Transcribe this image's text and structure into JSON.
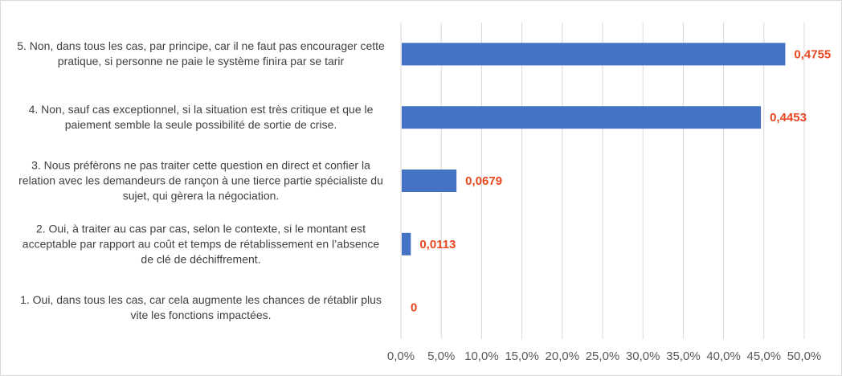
{
  "chart_data": {
    "type": "bar",
    "orientation": "horizontal",
    "categories": [
      "5. Non, dans tous les cas, par principe, car il ne faut pas encourager cette pratique, si personne ne paie le système finira par se tarir",
      "4. Non, sauf cas exceptionnel, si la situation est très critique et que le paiement semble la seule possibilité de sortie de crise.",
      "3. Nous préfèrons ne pas traiter cette question en direct et confier la relation avec les demandeurs de rançon à une tierce partie spécialiste du sujet, qui gèrera la négociation.",
      "2. Oui, à traiter au cas par cas, selon le contexte, si le montant est acceptable par rapport au coût et temps de rétablissement en l’absence de clé de déchiffrement.",
      "1. Oui, dans tous les cas, car cela augmente les chances de rétablir plus vite les fonctions impactées."
    ],
    "label_lines": [
      [
        "5. Non, dans tous les cas, par principe, car il ne faut pas encourager cette",
        "pratique, si personne ne paie le système finira par se tarir"
      ],
      [
        "4. Non, sauf cas exceptionnel, si la situation est très critique et que le",
        "paiement semble la seule possibilité de sortie de crise."
      ],
      [
        "3. Nous préfèrons ne pas traiter cette question en direct et confier la",
        "relation avec les demandeurs de rançon à une tierce partie spécialiste du",
        "sujet, qui gèrera la négociation."
      ],
      [
        "2. Oui, à traiter au cas par cas, selon le contexte, si le montant est",
        "acceptable par rapport au coût et temps de rétablissement en l’absence",
        "de clé de déchiffrement."
      ],
      [
        "1. Oui, dans tous les cas, car cela augmente les chances de rétablir plus",
        "vite les fonctions impactées."
      ]
    ],
    "values": [
      0.4755,
      0.4453,
      0.0679,
      0.0113,
      0
    ],
    "data_labels": [
      "0,4755",
      "0,4453",
      "0,0679",
      "0,0113",
      "0"
    ],
    "xlim": [
      0,
      0.5
    ],
    "x_ticks": [
      0,
      0.05,
      0.1,
      0.15,
      0.2,
      0.25,
      0.3,
      0.35,
      0.4,
      0.45,
      0.5
    ],
    "x_tick_labels": [
      "0,0%",
      "5,0%",
      "10,0%",
      "15,0%",
      "20,0%",
      "25,0%",
      "30,0%",
      "35,0%",
      "40,0%",
      "45,0%",
      "50,0%"
    ],
    "grid": true,
    "bar_color": "#4472c4",
    "label_color": "#e8471f",
    "grid_color": "#d9d9d9",
    "title": "",
    "xlabel": "",
    "ylabel": ""
  }
}
